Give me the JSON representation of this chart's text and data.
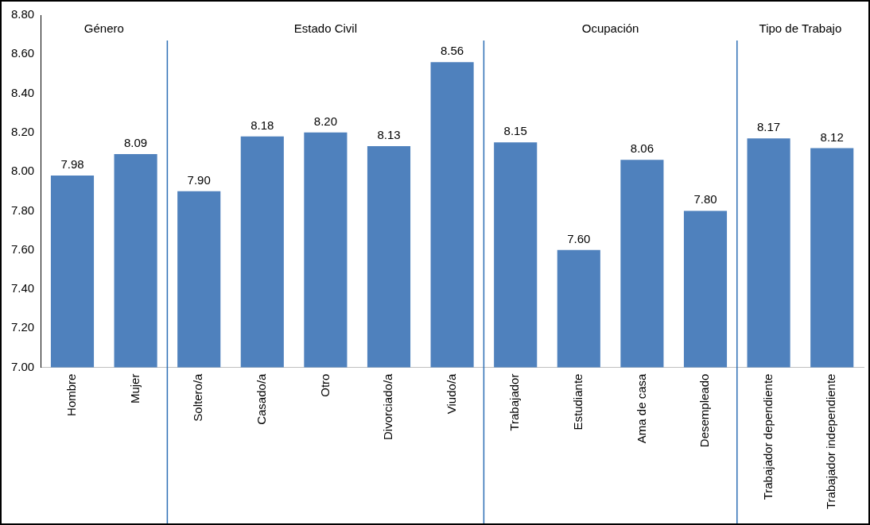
{
  "chart_data": {
    "type": "bar",
    "categories": [
      "Hombre",
      "Mujer",
      "Soltero/a",
      "Casado/a",
      "Otro",
      "Divorciado/a",
      "Viudo/a",
      "Trabajador",
      "Estudiante",
      "Ama de casa",
      "Desempleado",
      "Trabajador dependiente",
      "Trabajador independiente"
    ],
    "values": [
      7.98,
      8.09,
      7.9,
      8.18,
      8.2,
      8.13,
      8.56,
      8.15,
      7.6,
      8.06,
      7.8,
      8.17,
      8.12
    ],
    "value_labels": [
      "7.98",
      "8.09",
      "7.90",
      "8.18",
      "8.20",
      "8.13",
      "8.56",
      "8.15",
      "7.60",
      "8.06",
      "7.80",
      "8.17",
      "8.12"
    ],
    "color": "#4f81bd",
    "ylim": [
      7,
      8.8
    ],
    "yticks": [
      {
        "value": 7,
        "label": "7.00"
      },
      {
        "value": 7.2,
        "label": "7.20"
      },
      {
        "value": 7.4,
        "label": "7.40"
      },
      {
        "value": 7.6,
        "label": "7.60"
      },
      {
        "value": 7.8,
        "label": "7.80"
      },
      {
        "value": 8,
        "label": "8.00"
      },
      {
        "value": 8.2,
        "label": "8.20"
      },
      {
        "value": 8.4,
        "label": "8.40"
      },
      {
        "value": 8.6,
        "label": "8.60"
      },
      {
        "value": 8.8,
        "label": "8.80"
      }
    ],
    "annotations": [
      "Género",
      "Estado Civil",
      "Ocupación",
      "Tipo de Trabajo"
    ],
    "grid": false,
    "legend": false
  }
}
